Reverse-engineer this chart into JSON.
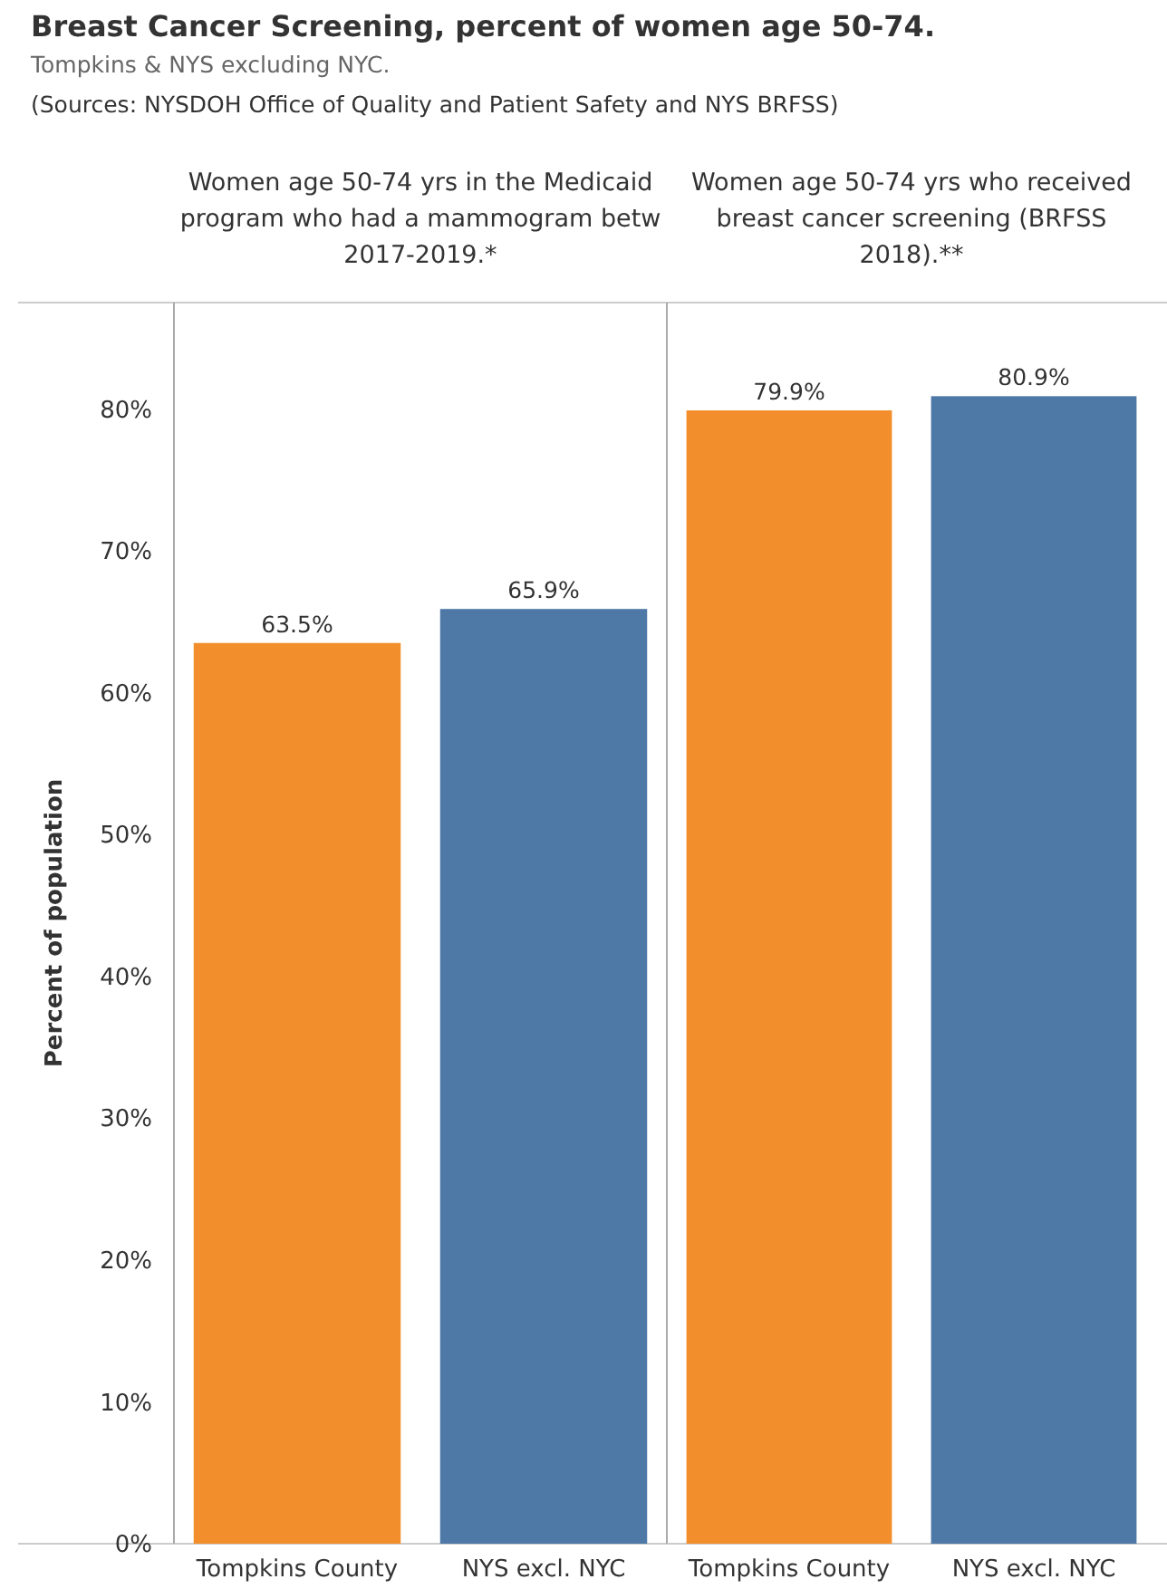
{
  "chart_data": [
    {
      "type": "bar",
      "title": "Breast Cancer Screening, percent of women age 50-74.",
      "subtitle": "Tompkins & NYS excluding NYC.",
      "annotations": [
        "(Sources: NYSDOH Office of Quality and Patient Safety and NYS BRFSS)",
        "Women age 50-74 yrs in the Medicaid program who had a mammogram betw 2017-2019.*"
      ],
      "ylabel": "Percent of population",
      "categories": [
        "Tompkins County",
        "NYS excl. NYC"
      ],
      "values": [
        63.5,
        65.9
      ],
      "colors": [
        "#f28e2b",
        "#4e79a7"
      ],
      "data_labels": true,
      "value_labels": [
        "63.5%",
        "65.9%"
      ],
      "ylim": [
        0,
        87.5
      ],
      "yticks": [
        {
          "value": 0,
          "label": "0%"
        },
        {
          "value": 10,
          "label": "10%"
        },
        {
          "value": 20,
          "label": "20%"
        },
        {
          "value": 30,
          "label": "30%"
        },
        {
          "value": 40,
          "label": "40%"
        },
        {
          "value": 50,
          "label": "50%"
        },
        {
          "value": 60,
          "label": "60%"
        },
        {
          "value": 70,
          "label": "70%"
        },
        {
          "value": 80,
          "label": "80%"
        }
      ],
      "grid": false
    },
    {
      "type": "bar",
      "title": "Women age 50-74 yrs who received breast cancer screening (BRFSS 2018).**",
      "categories": [
        "Tompkins County",
        "NYS excl. NYC"
      ],
      "values": [
        79.9,
        80.9
      ],
      "colors": [
        "#f28e2b",
        "#4e79a7"
      ],
      "data_labels": true,
      "value_labels": [
        "79.9%",
        "80.9%"
      ],
      "ylim": [
        0,
        87.5
      ],
      "tick_labels": "x",
      "grid": false
    }
  ]
}
